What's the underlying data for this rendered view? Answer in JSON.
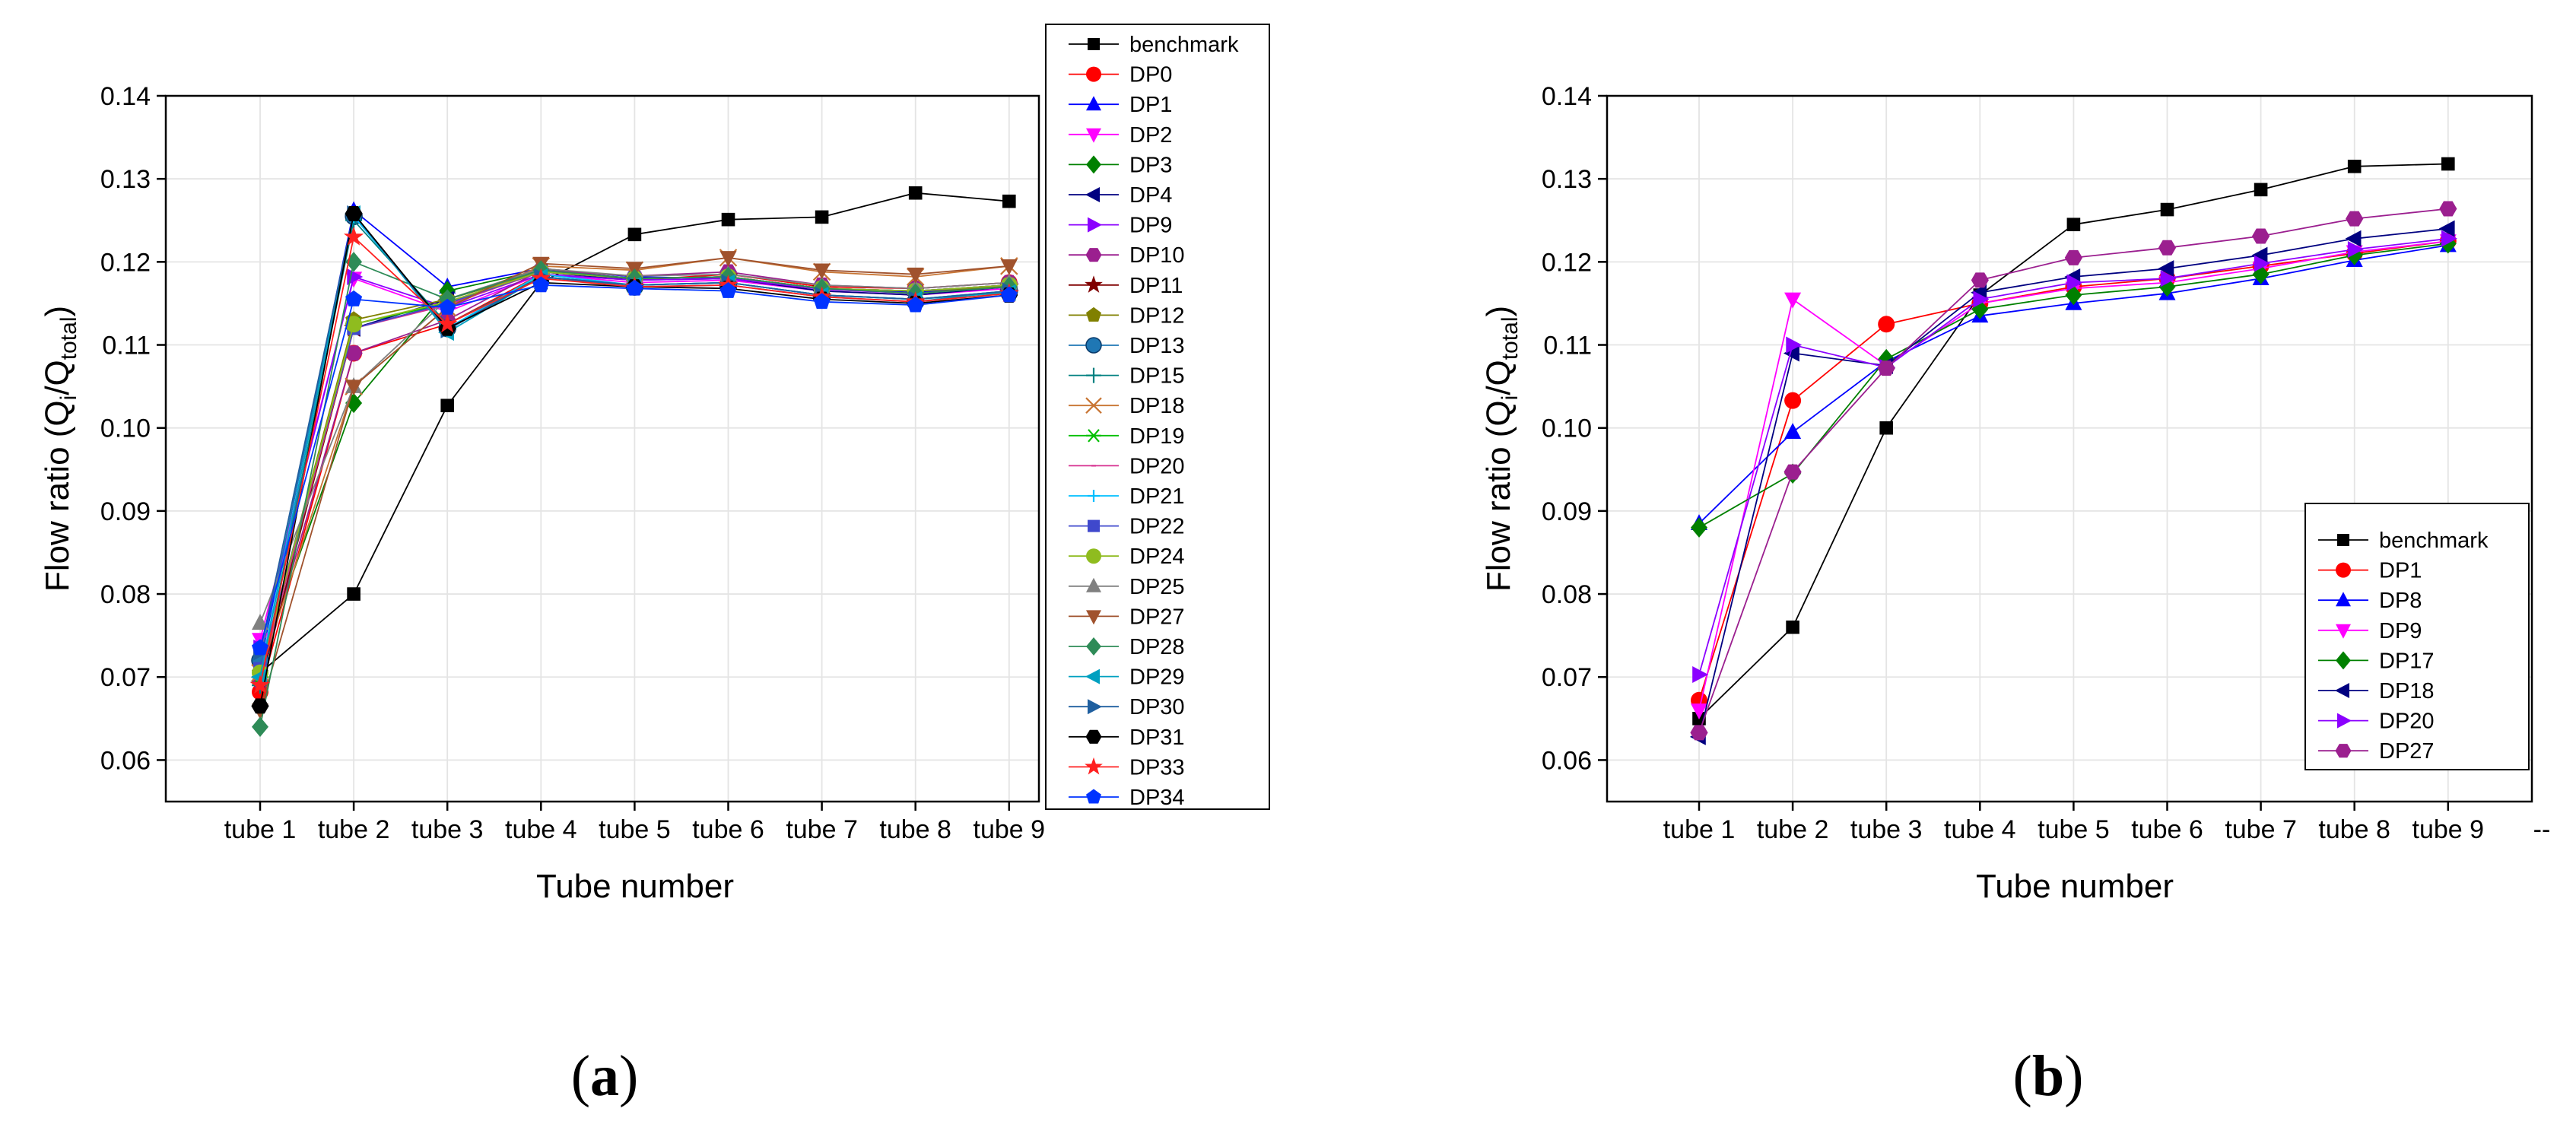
{
  "chart_data": [
    {
      "type": "line",
      "panel_label": "a",
      "xlabel": "Tube number",
      "ylabel_main": "Flow ratio (Q",
      "ylabel_sub_i": "i",
      "ylabel_sep": "/Q",
      "ylabel_sub_total": "total",
      "ylabel_close": ")",
      "categories": [
        "tube 1",
        "tube 2",
        "tube 3",
        "tube 4",
        "tube 5",
        "tube 6",
        "tube 7",
        "tube 8",
        "tube 9"
      ],
      "ylim": [
        0.055,
        0.14
      ],
      "yticks": [
        0.06,
        0.07,
        0.08,
        0.09,
        0.1,
        0.11,
        0.12,
        0.13,
        0.14
      ],
      "ytick_labels": [
        "0.06",
        "0.07",
        "0.08",
        "0.09",
        "0.10",
        "0.11",
        "0.12",
        "0.13",
        "0.14"
      ],
      "grid": true,
      "legend_position": "outside-top-right",
      "series": [
        {
          "name": "benchmark",
          "color": "#000000",
          "marker": "square",
          "values": [
            0.0705,
            0.08,
            0.1027,
            0.1175,
            0.1233,
            0.1251,
            0.1254,
            0.1283,
            0.1273
          ]
        },
        {
          "name": "DP0",
          "color": "#ff0000",
          "marker": "circle",
          "values": [
            0.0682,
            0.109,
            0.1125,
            0.1185,
            0.1178,
            0.1185,
            0.117,
            0.1168,
            0.1175
          ]
        },
        {
          "name": "DP1",
          "color": "#0000ff",
          "marker": "triangle-up",
          "values": [
            0.0715,
            0.1262,
            0.117,
            0.1192,
            0.1182,
            0.118,
            0.1168,
            0.1163,
            0.1172
          ]
        },
        {
          "name": "DP2",
          "color": "#ff00ff",
          "marker": "triangle-down",
          "values": [
            0.0745,
            0.118,
            0.114,
            0.1185,
            0.1175,
            0.1178,
            0.1165,
            0.116,
            0.1168
          ]
        },
        {
          "name": "DP3",
          "color": "#008000",
          "marker": "diamond",
          "values": [
            0.0715,
            0.103,
            0.1165,
            0.119,
            0.118,
            0.1182,
            0.1168,
            0.1165,
            0.1172
          ]
        },
        {
          "name": "DP4",
          "color": "#000080",
          "marker": "triangle-left",
          "values": [
            0.07,
            0.112,
            0.1155,
            0.1188,
            0.1178,
            0.118,
            0.1165,
            0.116,
            0.117
          ]
        },
        {
          "name": "DP9",
          "color": "#8b00ff",
          "marker": "triangle-right",
          "values": [
            0.0735,
            0.1182,
            0.1145,
            0.1185,
            0.1178,
            0.118,
            0.1167,
            0.1162,
            0.117
          ]
        },
        {
          "name": "DP10",
          "color": "#9b1f8f",
          "marker": "hexagon",
          "values": [
            0.0695,
            0.109,
            0.113,
            0.119,
            0.1183,
            0.1188,
            0.1172,
            0.1168,
            0.1175
          ]
        },
        {
          "name": "DP11",
          "color": "#800000",
          "marker": "star",
          "values": [
            0.069,
            0.112,
            0.115,
            0.1188,
            0.118,
            0.1182,
            0.1168,
            0.1165,
            0.117
          ]
        },
        {
          "name": "DP12",
          "color": "#808000",
          "marker": "pentagon",
          "values": [
            0.0705,
            0.113,
            0.1155,
            0.1188,
            0.118,
            0.1182,
            0.1168,
            0.1165,
            0.117
          ]
        },
        {
          "name": "DP13",
          "color": "#1f77b4",
          "marker": "circle-half",
          "values": [
            0.072,
            0.1255,
            0.112,
            0.1182,
            0.117,
            0.1172,
            0.1158,
            0.1152,
            0.1165
          ]
        },
        {
          "name": "DP15",
          "color": "#008080",
          "marker": "plus",
          "values": [
            0.069,
            0.125,
            0.1125,
            0.1182,
            0.1172,
            0.1175,
            0.116,
            0.1155,
            0.1165
          ]
        },
        {
          "name": "DP18",
          "color": "#c87533",
          "marker": "x",
          "values": [
            0.0705,
            0.105,
            0.1145,
            0.1195,
            0.119,
            0.1205,
            0.1188,
            0.1182,
            0.1195
          ]
        },
        {
          "name": "DP19",
          "color": "#00c000",
          "marker": "asterisk",
          "values": [
            0.07,
            0.1125,
            0.115,
            0.1188,
            0.118,
            0.1182,
            0.1168,
            0.1165,
            0.1172
          ]
        },
        {
          "name": "DP20",
          "color": "#d62f8f",
          "marker": "dash",
          "values": [
            0.07,
            0.112,
            0.1148,
            0.1188,
            0.118,
            0.1182,
            0.1168,
            0.1165,
            0.1172
          ]
        },
        {
          "name": "DP21",
          "color": "#00bfff",
          "marker": "plus-small",
          "values": [
            0.0705,
            0.1255,
            0.112,
            0.1185,
            0.1172,
            0.1175,
            0.116,
            0.1155,
            0.1165
          ]
        },
        {
          "name": "DP22",
          "color": "#3f48cc",
          "marker": "square",
          "values": [
            0.071,
            0.112,
            0.115,
            0.1188,
            0.118,
            0.1182,
            0.1168,
            0.1165,
            0.1172
          ]
        },
        {
          "name": "DP24",
          "color": "#8fbc1f",
          "marker": "circle",
          "values": [
            0.0705,
            0.1125,
            0.1152,
            0.1188,
            0.118,
            0.1182,
            0.1168,
            0.1165,
            0.1172
          ]
        },
        {
          "name": "DP25",
          "color": "#808080",
          "marker": "triangle-up",
          "values": [
            0.0765,
            0.105,
            0.1155,
            0.1192,
            0.1183,
            0.1185,
            0.1172,
            0.1168,
            0.1175
          ]
        },
        {
          "name": "DP27",
          "color": "#a0522d",
          "marker": "triangle-down",
          "values": [
            0.066,
            0.105,
            0.1145,
            0.1198,
            0.1192,
            0.1205,
            0.119,
            0.1185,
            0.1195
          ]
        },
        {
          "name": "DP28",
          "color": "#2e8b57",
          "marker": "diamond",
          "values": [
            0.064,
            0.12,
            0.1155,
            0.119,
            0.118,
            0.1182,
            0.1168,
            0.1162,
            0.117
          ]
        },
        {
          "name": "DP29",
          "color": "#00a0c0",
          "marker": "triangle-left",
          "values": [
            0.07,
            0.1258,
            0.1115,
            0.1182,
            0.1172,
            0.1175,
            0.116,
            0.1155,
            0.1163
          ]
        },
        {
          "name": "DP30",
          "color": "#1f5f9f",
          "marker": "triangle-right",
          "values": [
            0.073,
            0.1258,
            0.1118,
            0.1182,
            0.1172,
            0.1175,
            0.116,
            0.1155,
            0.1165
          ]
        },
        {
          "name": "DP31",
          "color": "#000000",
          "marker": "hexagon",
          "values": [
            0.0665,
            0.1258,
            0.112,
            0.1175,
            0.117,
            0.1168,
            0.1155,
            0.115,
            0.116
          ]
        },
        {
          "name": "DP33",
          "color": "#ff2020",
          "marker": "star",
          "values": [
            0.069,
            0.123,
            0.1125,
            0.118,
            0.117,
            0.1172,
            0.1158,
            0.1152,
            0.1162
          ]
        },
        {
          "name": "DP34",
          "color": "#0033ff",
          "marker": "pentagon",
          "values": [
            0.0735,
            0.1155,
            0.1145,
            0.1172,
            0.1168,
            0.1165,
            0.1152,
            0.1148,
            0.116
          ]
        }
      ]
    },
    {
      "type": "line",
      "panel_label": "b",
      "xlabel": "Tube number",
      "ylabel_main": "Flow ratio (Q",
      "ylabel_sub_i": "i",
      "ylabel_sep": "/Q",
      "ylabel_sub_total": "total",
      "ylabel_close": ")",
      "categories": [
        "tube 1",
        "tube 2",
        "tube 3",
        "tube 4",
        "tube 5",
        "tube 6",
        "tube 7",
        "tube 8",
        "tube 9"
      ],
      "trailing_tick": "--",
      "ylim": [
        0.055,
        0.14
      ],
      "yticks": [
        0.06,
        0.07,
        0.08,
        0.09,
        0.1,
        0.11,
        0.12,
        0.13,
        0.14
      ],
      "ytick_labels": [
        "0.06",
        "0.07",
        "0.08",
        "0.09",
        "0.10",
        "0.11",
        "0.12",
        "0.13",
        "0.14"
      ],
      "grid": true,
      "legend_position": "bottom-right",
      "series": [
        {
          "name": "benchmark",
          "color": "#000000",
          "marker": "square",
          "values": [
            0.065,
            0.076,
            0.1,
            0.116,
            0.1245,
            0.1263,
            0.1287,
            0.1315,
            0.1318
          ]
        },
        {
          "name": "DP1",
          "color": "#ff0000",
          "marker": "circle",
          "values": [
            0.0672,
            0.1033,
            0.1125,
            0.115,
            0.117,
            0.118,
            0.1195,
            0.121,
            0.1225
          ]
        },
        {
          "name": "DP8",
          "color": "#0000ff",
          "marker": "triangle-up",
          "values": [
            0.0885,
            0.0995,
            0.108,
            0.1135,
            0.115,
            0.1162,
            0.118,
            0.1202,
            0.122
          ]
        },
        {
          "name": "DP9",
          "color": "#ff00ff",
          "marker": "triangle-down",
          "values": [
            0.066,
            0.1155,
            0.1075,
            0.115,
            0.1168,
            0.1175,
            0.1192,
            0.1212,
            0.1225
          ]
        },
        {
          "name": "DP17",
          "color": "#008000",
          "marker": "diamond",
          "values": [
            0.088,
            0.0945,
            0.1083,
            0.1143,
            0.116,
            0.117,
            0.1185,
            0.1208,
            0.1222
          ]
        },
        {
          "name": "DP18",
          "color": "#000080",
          "marker": "triangle-left",
          "values": [
            0.0628,
            0.109,
            0.1075,
            0.1163,
            0.1182,
            0.1192,
            0.1208,
            0.1228,
            0.124
          ]
        },
        {
          "name": "DP20",
          "color": "#8b00ff",
          "marker": "triangle-right",
          "values": [
            0.0703,
            0.11,
            0.1073,
            0.1155,
            0.1175,
            0.118,
            0.1198,
            0.1215,
            0.1228
          ]
        },
        {
          "name": "DP27",
          "color": "#9b1f8f",
          "marker": "hexagon",
          "values": [
            0.0633,
            0.0947,
            0.1072,
            0.1178,
            0.1205,
            0.1217,
            0.1231,
            0.1252,
            0.1264
          ]
        }
      ]
    }
  ]
}
